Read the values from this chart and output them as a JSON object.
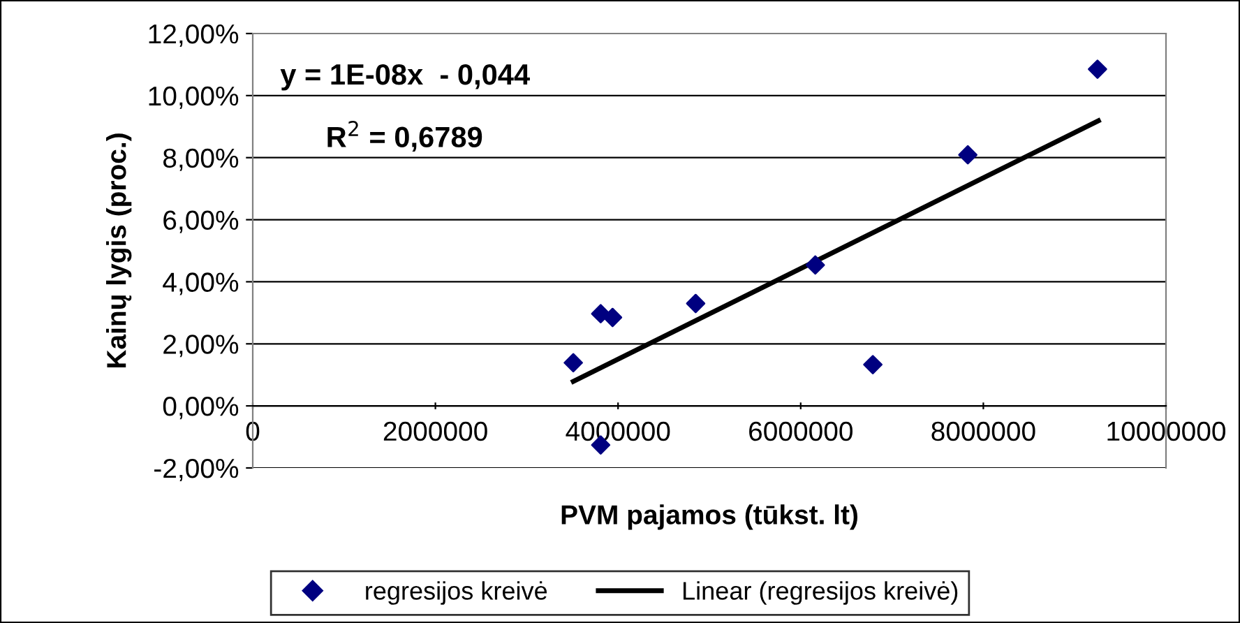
{
  "chart_data": {
    "type": "scatter",
    "xlabel": "PVM pajamos (tūkst. lt)",
    "ylabel": "Kainų lygis (proc.)",
    "annotations": [
      "y = 1E-08x  - 0,044",
      "R$^{2}$ = 0,6789"
    ],
    "series": [
      {
        "name": "regresijos kreivė",
        "color": "#000080",
        "marker": "diamond",
        "x": [
          3510000,
          3810000,
          3940000,
          3810000,
          4850000,
          6160000,
          6790000,
          7830000,
          9250000
        ],
        "values": [
          1.39,
          2.97,
          2.85,
          -1.26,
          3.3,
          4.54,
          1.33,
          8.09,
          10.85
        ]
      },
      {
        "name": "Linear (regresijos kreivė)",
        "type": "line",
        "color": "#000000",
        "marker": "none",
        "x": [
          3510000,
          9260000
        ],
        "values": [
          0.79,
          9.19
        ]
      }
    ],
    "xlim": [
      0,
      10000000
    ],
    "xticks": [
      0,
      2000000,
      4000000,
      6000000,
      8000000,
      10000000
    ],
    "ylim": [
      -2,
      12
    ],
    "yticks": [
      {
        "value": -2,
        "label": "-2,00%"
      },
      {
        "value": 0,
        "label": "0,00%"
      },
      {
        "value": 2,
        "label": "2,00%"
      },
      {
        "value": 4,
        "label": "4,00%"
      },
      {
        "value": 6,
        "label": "6,00%"
      },
      {
        "value": 8,
        "label": "8,00%"
      },
      {
        "value": 10,
        "label": "10,00%"
      },
      {
        "value": 12,
        "label": "12,00%"
      }
    ],
    "grid": "y",
    "legend": "bottom"
  }
}
